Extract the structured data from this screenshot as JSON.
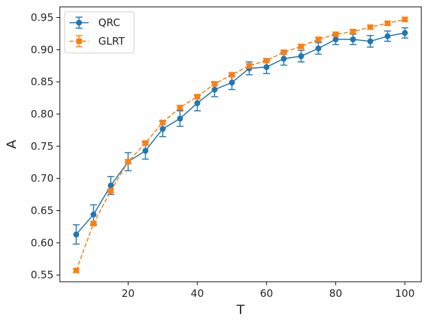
{
  "chart_data": {
    "type": "line",
    "title": "",
    "xlabel": "T",
    "ylabel": "A",
    "xlim": [
      0.25,
      104.75
    ],
    "ylim": [
      0.5395,
      0.9665
    ],
    "xticks": [
      20,
      40,
      60,
      80,
      100
    ],
    "yticks": [
      0.55,
      0.6,
      0.65,
      0.7,
      0.75,
      0.8,
      0.85,
      0.9,
      0.95
    ],
    "x": [
      5,
      10,
      15,
      20,
      25,
      30,
      35,
      40,
      45,
      50,
      55,
      60,
      65,
      70,
      75,
      80,
      85,
      90,
      95,
      100
    ],
    "grid": false,
    "legend_position": "top-left",
    "series": [
      {
        "name": "QRC",
        "color": "#1f77b4",
        "linestyle": "solid",
        "marker": "circle",
        "values": [
          0.613,
          0.644,
          0.689,
          0.726,
          0.743,
          0.777,
          0.793,
          0.817,
          0.838,
          0.849,
          0.871,
          0.873,
          0.886,
          0.89,
          0.902,
          0.916,
          0.916,
          0.913,
          0.921,
          0.926
        ],
        "errors": [
          0.015,
          0.015,
          0.014,
          0.014,
          0.013,
          0.012,
          0.012,
          0.012,
          0.011,
          0.011,
          0.01,
          0.01,
          0.01,
          0.009,
          0.009,
          0.008,
          0.008,
          0.009,
          0.008,
          0.008
        ]
      },
      {
        "name": "GLRT",
        "color": "#ff7f0e",
        "linestyle": "dashed",
        "marker": "square",
        "values": [
          0.557,
          0.63,
          0.681,
          0.726,
          0.755,
          0.787,
          0.81,
          0.827,
          0.847,
          0.861,
          0.875,
          0.883,
          0.896,
          0.905,
          0.916,
          0.924,
          0.928,
          0.935,
          0.941,
          0.947
        ],
        "errors": [
          0.003,
          0.003,
          0.003,
          0.003,
          0.003,
          0.003,
          0.003,
          0.003,
          0.003,
          0.003,
          0.003,
          0.003,
          0.003,
          0.003,
          0.003,
          0.003,
          0.003,
          0.003,
          0.003,
          0.003
        ]
      }
    ]
  }
}
